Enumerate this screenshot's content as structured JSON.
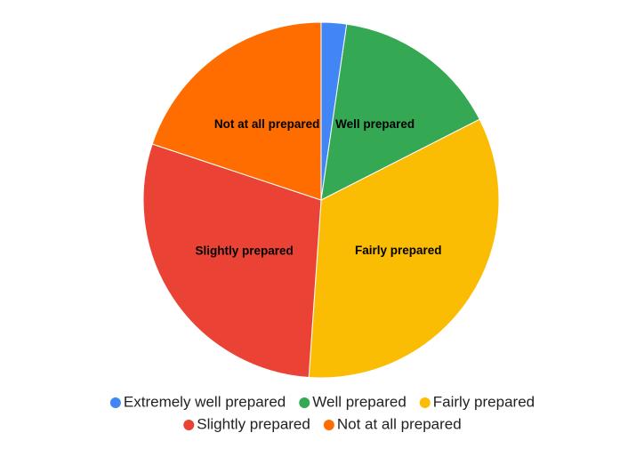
{
  "chart_data": {
    "type": "pie",
    "categories": [
      "Extremely well prepared",
      "Well prepared",
      "Fairly prepared",
      "Slightly prepared",
      "Not at all prepared"
    ],
    "values": [
      2.3,
      15.2,
      33.6,
      29,
      19.9
    ],
    "colors": [
      "#4285f4",
      "#34a853",
      "#fbbc04",
      "#ea4335",
      "#ff6d01"
    ]
  }
}
